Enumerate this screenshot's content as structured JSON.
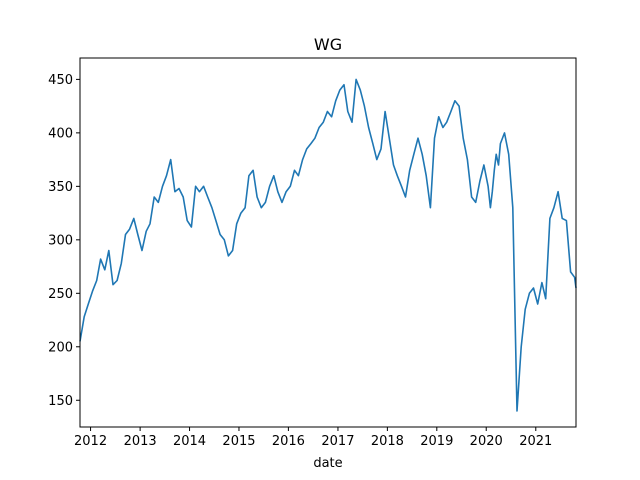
{
  "chart_data": {
    "type": "line",
    "title": "WG",
    "xlabel": "date",
    "ylabel": "",
    "xlim": [
      "2011-10-15",
      "2021-10-25"
    ],
    "ylim": [
      125,
      470
    ],
    "grid": false,
    "line_color": "#1f77b4",
    "x_ticks": [
      {
        "date": "2012-01-01",
        "label": "2012"
      },
      {
        "date": "2013-01-01",
        "label": "2013"
      },
      {
        "date": "2014-01-01",
        "label": "2014"
      },
      {
        "date": "2015-01-01",
        "label": "2015"
      },
      {
        "date": "2016-01-01",
        "label": "2016"
      },
      {
        "date": "2017-01-01",
        "label": "2017"
      },
      {
        "date": "2018-01-01",
        "label": "2018"
      },
      {
        "date": "2019-01-01",
        "label": "2019"
      },
      {
        "date": "2020-01-01",
        "label": "2020"
      },
      {
        "date": "2021-01-01",
        "label": "2021"
      }
    ],
    "y_ticks": [
      150,
      200,
      250,
      300,
      350,
      400,
      450
    ],
    "series": [
      {
        "x": [
          "2011-10-15",
          "2011-11-15",
          "2011-12-15",
          "2012-01-15",
          "2012-02-15",
          "2012-03-15",
          "2012-04-15",
          "2012-05-15",
          "2012-06-15",
          "2012-07-15",
          "2012-08-15",
          "2012-09-15",
          "2012-10-15",
          "2012-11-15",
          "2012-12-15",
          "2013-01-15",
          "2013-02-15",
          "2013-03-15",
          "2013-04-15",
          "2013-05-15",
          "2013-06-15",
          "2013-07-15",
          "2013-08-15",
          "2013-09-15",
          "2013-10-15",
          "2013-11-15",
          "2013-12-15",
          "2014-01-15",
          "2014-02-15",
          "2014-03-15",
          "2014-04-15",
          "2014-05-15",
          "2014-06-15",
          "2014-07-15",
          "2014-08-15",
          "2014-09-15",
          "2014-10-15",
          "2014-11-15",
          "2014-12-15",
          "2015-01-15",
          "2015-02-15",
          "2015-03-15",
          "2015-04-15",
          "2015-05-15",
          "2015-06-15",
          "2015-07-15",
          "2015-08-15",
          "2015-09-15",
          "2015-10-15",
          "2015-11-15",
          "2015-12-15",
          "2016-01-15",
          "2016-02-15",
          "2016-03-15",
          "2016-04-15",
          "2016-05-15",
          "2016-06-15",
          "2016-07-15",
          "2016-08-15",
          "2016-09-15",
          "2016-10-15",
          "2016-11-15",
          "2016-12-15",
          "2017-01-15",
          "2017-02-15",
          "2017-03-15",
          "2017-04-15",
          "2017-05-15",
          "2017-06-15",
          "2017-07-15",
          "2017-08-15",
          "2017-09-15",
          "2017-10-15",
          "2017-11-15",
          "2017-12-15",
          "2018-01-15",
          "2018-02-15",
          "2018-03-15",
          "2018-04-15",
          "2018-05-15",
          "2018-06-15",
          "2018-07-15",
          "2018-08-15",
          "2018-09-15",
          "2018-10-15",
          "2018-11-15",
          "2018-12-15",
          "2019-01-15",
          "2019-02-15",
          "2019-03-15",
          "2019-04-15",
          "2019-05-15",
          "2019-06-15",
          "2019-07-15",
          "2019-08-15",
          "2019-09-15",
          "2019-10-15",
          "2019-11-15",
          "2019-12-15",
          "2020-01-15",
          "2020-02-01",
          "2020-02-15",
          "2020-03-01",
          "2020-03-15",
          "2020-04-01",
          "2020-04-15",
          "2020-05-15",
          "2020-06-15",
          "2020-07-15",
          "2020-08-15",
          "2020-09-15",
          "2020-10-15",
          "2020-11-15",
          "2020-12-15",
          "2021-01-15",
          "2021-02-15",
          "2021-03-15",
          "2021-04-15",
          "2021-05-15",
          "2021-06-15",
          "2021-07-15",
          "2021-08-15",
          "2021-09-15",
          "2021-10-15",
          "2021-10-25"
        ],
        "y": [
          205,
          228,
          240,
          252,
          262,
          282,
          272,
          290,
          258,
          262,
          278,
          305,
          310,
          320,
          305,
          290,
          308,
          315,
          340,
          335,
          350,
          360,
          375,
          345,
          348,
          340,
          318,
          312,
          350,
          345,
          350,
          340,
          330,
          318,
          305,
          300,
          285,
          290,
          315,
          325,
          330,
          360,
          365,
          340,
          330,
          335,
          350,
          360,
          345,
          335,
          345,
          350,
          365,
          360,
          375,
          385,
          390,
          395,
          405,
          410,
          420,
          415,
          430,
          440,
          445,
          420,
          410,
          450,
          440,
          425,
          405,
          390,
          375,
          385,
          420,
          395,
          370,
          360,
          350,
          340,
          365,
          380,
          395,
          380,
          360,
          330,
          395,
          415,
          405,
          410,
          420,
          430,
          425,
          395,
          375,
          340,
          335,
          355,
          370,
          350,
          330,
          345,
          365,
          380,
          370,
          390,
          400,
          380,
          330,
          140,
          200,
          235,
          250,
          255,
          240,
          260,
          245,
          320,
          330,
          345,
          320,
          318,
          270,
          265,
          255
        ]
      }
    ]
  }
}
